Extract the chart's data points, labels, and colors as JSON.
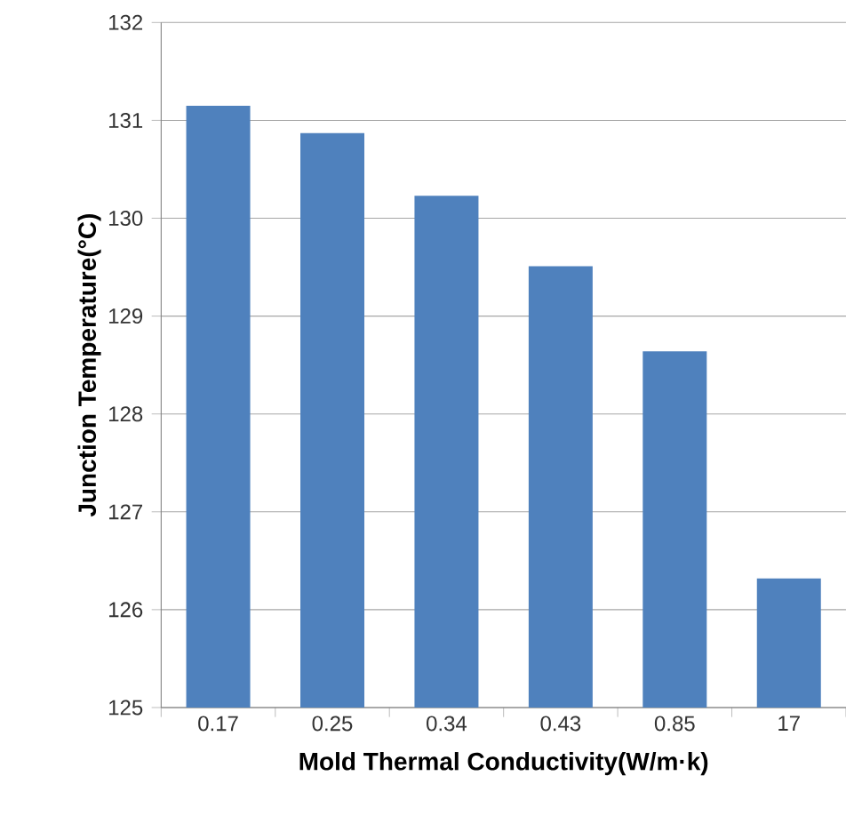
{
  "chart_data": {
    "type": "bar",
    "xlabel": "Mold Thermal Conductivity(W/m·k)",
    "ylabel": "Junction Temperature(°C)",
    "categories": [
      "0.17",
      "0.25",
      "0.34",
      "0.43",
      "0.85",
      "17"
    ],
    "values": [
      131.15,
      130.87,
      130.23,
      129.51,
      128.64,
      126.32
    ],
    "color": "#4f81bd",
    "ylim": [
      125,
      132
    ],
    "yticks": [
      125,
      126,
      127,
      128,
      129,
      130,
      131,
      132
    ],
    "grid": "y"
  }
}
